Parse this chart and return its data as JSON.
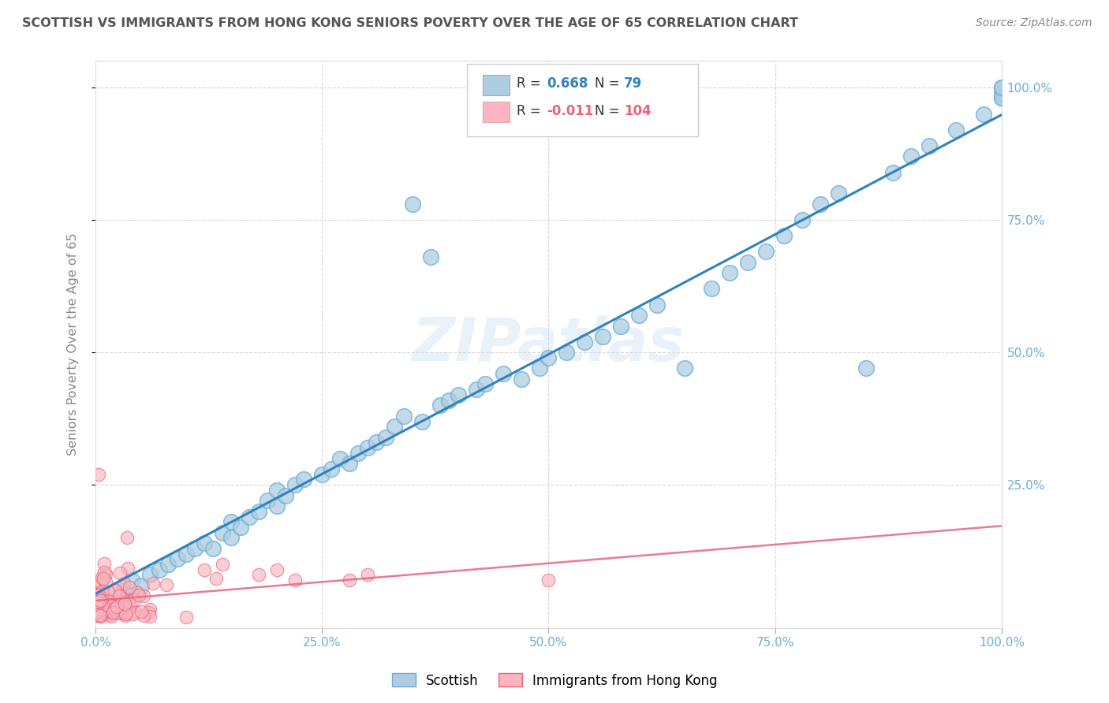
{
  "title": "SCOTTISH VS IMMIGRANTS FROM HONG KONG SENIORS POVERTY OVER THE AGE OF 65 CORRELATION CHART",
  "source": "Source: ZipAtlas.com",
  "ylabel": "Seniors Poverty Over the Age of 65",
  "xlim": [
    0,
    1.0
  ],
  "ylim": [
    -0.02,
    1.05
  ],
  "xtick_labels": [
    "0.0%",
    "25.0%",
    "50.0%",
    "75.0%",
    "100.0%"
  ],
  "xtick_vals": [
    0.0,
    0.25,
    0.5,
    0.75,
    1.0
  ],
  "ytick_labels": [
    "100.0%",
    "75.0%",
    "50.0%",
    "25.0%"
  ],
  "ytick_vals": [
    1.0,
    0.75,
    0.5,
    0.25
  ],
  "scottish_R": 0.668,
  "scottish_N": 79,
  "hk_R": -0.011,
  "hk_N": 104,
  "scottish_color": "#aecde1",
  "scottish_edge": "#6baed6",
  "hk_color": "#fbb4c0",
  "hk_edge": "#e8647a",
  "trend_scottish_color": "#3182bd",
  "trend_hk_color": "#e8647a",
  "watermark": "ZIPatlas",
  "background_color": "#ffffff",
  "grid_color": "#cccccc",
  "title_color": "#555555",
  "axis_tick_color": "#6baed6",
  "legend_R_color_scottish": "#3182bd",
  "legend_R_color_hk": "#e8647a",
  "legend_box_color": "#aecde1",
  "legend_hk_box_color": "#fbb4c0"
}
